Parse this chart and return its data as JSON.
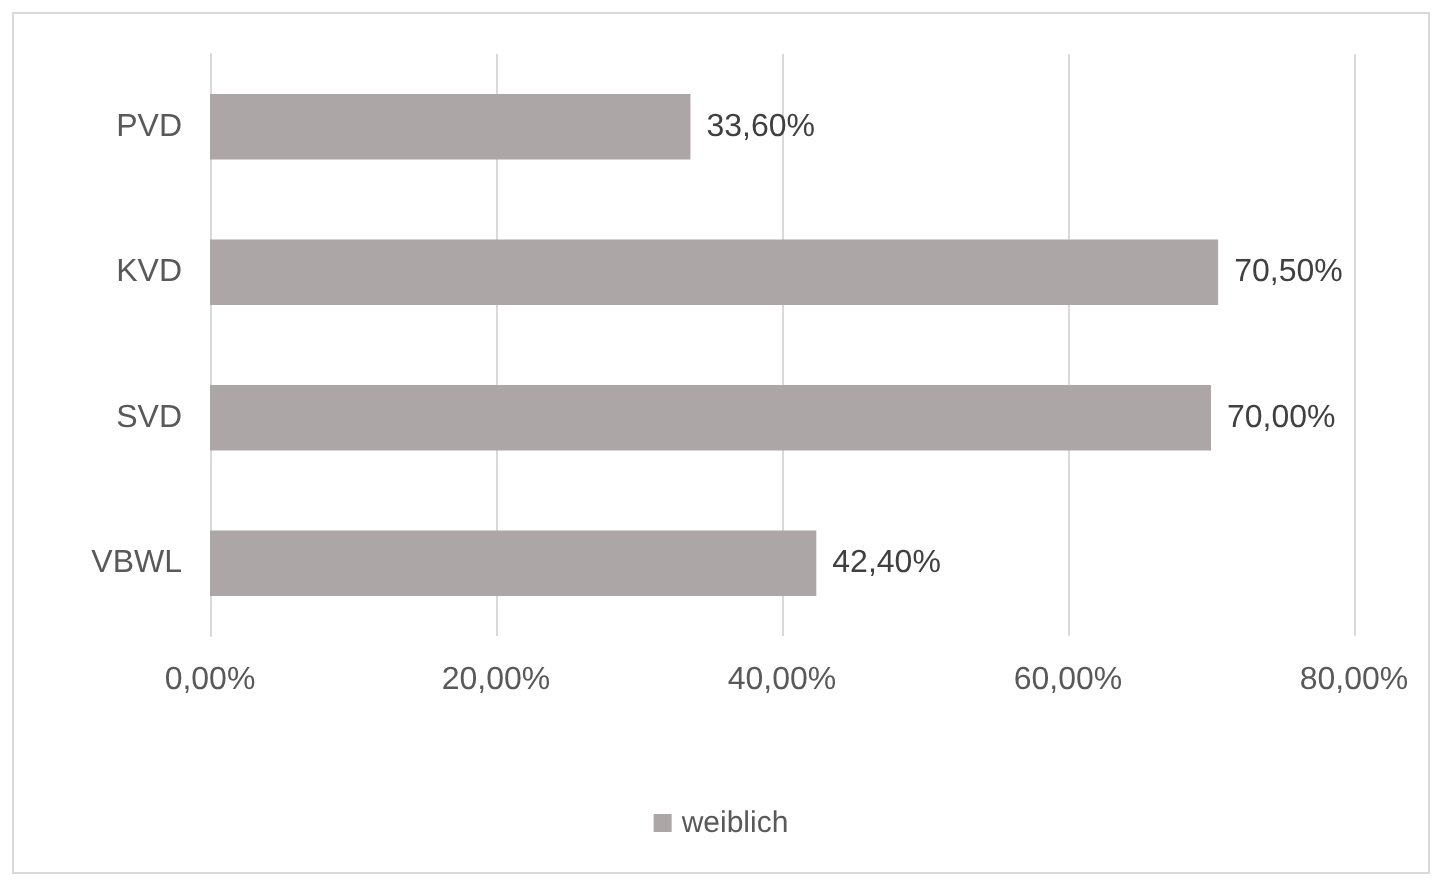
{
  "chart_data": {
    "type": "bar",
    "orientation": "horizontal",
    "categories": [
      "PVD",
      "KVD",
      "SVD",
      "VBWL"
    ],
    "series": [
      {
        "name": "weiblich",
        "color": "#aca6a6",
        "values": [
          33.6,
          70.5,
          70.0,
          42.4
        ],
        "value_labels": [
          "33,60%",
          "70,50%",
          "70,00%",
          "42,40%"
        ]
      }
    ],
    "xlim": [
      0,
      80
    ],
    "xticks": [
      {
        "value": 0,
        "label": "0,00%"
      },
      {
        "value": 20,
        "label": "20,00%"
      },
      {
        "value": 40,
        "label": "40,00%"
      },
      {
        "value": 60,
        "label": "60,00%"
      },
      {
        "value": 80,
        "label": "80,00%"
      }
    ],
    "grid": "x",
    "legend": "bottom"
  }
}
